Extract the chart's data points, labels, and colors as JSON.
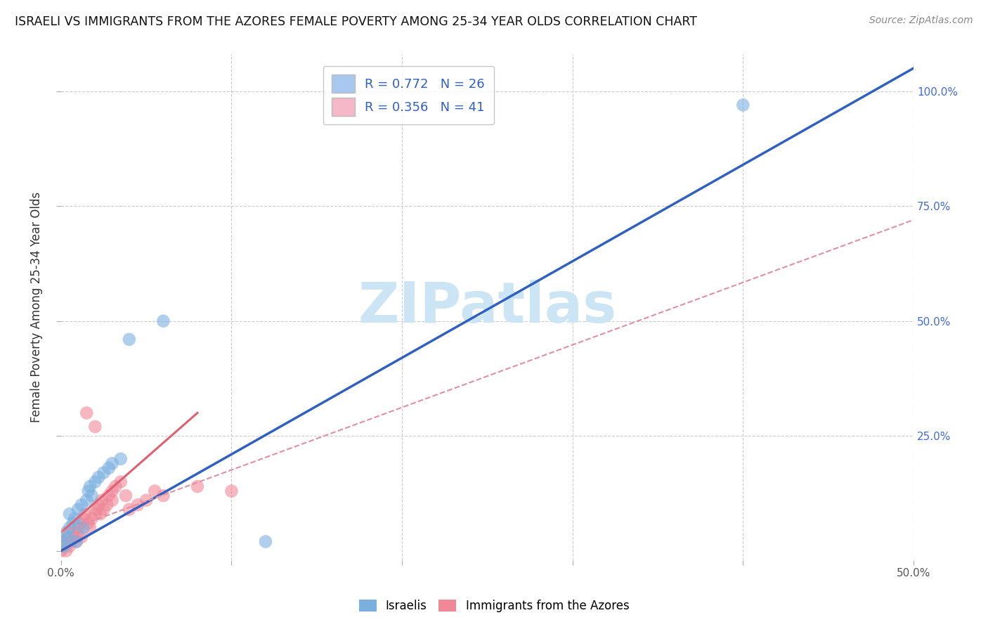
{
  "title": "ISRAELI VS IMMIGRANTS FROM THE AZORES FEMALE POVERTY AMONG 25-34 YEAR OLDS CORRELATION CHART",
  "source": "Source: ZipAtlas.com",
  "ylabel": "Female Poverty Among 25-34 Year Olds",
  "xlim": [
    0.0,
    0.5
  ],
  "ylim": [
    -0.02,
    1.08
  ],
  "legend_items": [
    {
      "label": "R = 0.772   N = 26",
      "color": "#a8c8f0"
    },
    {
      "label": "R = 0.356   N = 41",
      "color": "#f5b8c8"
    }
  ],
  "israelis_scatter": [
    [
      0.0,
      0.02
    ],
    [
      0.002,
      0.01
    ],
    [
      0.003,
      0.04
    ],
    [
      0.004,
      0.03
    ],
    [
      0.005,
      0.05
    ],
    [
      0.005,
      0.08
    ],
    [
      0.007,
      0.06
    ],
    [
      0.008,
      0.07
    ],
    [
      0.009,
      0.02
    ],
    [
      0.01,
      0.09
    ],
    [
      0.012,
      0.1
    ],
    [
      0.013,
      0.05
    ],
    [
      0.015,
      0.11
    ],
    [
      0.016,
      0.13
    ],
    [
      0.017,
      0.14
    ],
    [
      0.018,
      0.12
    ],
    [
      0.02,
      0.15
    ],
    [
      0.022,
      0.16
    ],
    [
      0.025,
      0.17
    ],
    [
      0.028,
      0.18
    ],
    [
      0.03,
      0.19
    ],
    [
      0.035,
      0.2
    ],
    [
      0.04,
      0.46
    ],
    [
      0.06,
      0.5
    ],
    [
      0.12,
      0.02
    ],
    [
      0.4,
      0.97
    ]
  ],
  "azores_scatter": [
    [
      0.0,
      0.0
    ],
    [
      0.001,
      0.01
    ],
    [
      0.002,
      0.02
    ],
    [
      0.003,
      0.0
    ],
    [
      0.004,
      0.03
    ],
    [
      0.005,
      0.01
    ],
    [
      0.006,
      0.02
    ],
    [
      0.007,
      0.04
    ],
    [
      0.008,
      0.03
    ],
    [
      0.009,
      0.02
    ],
    [
      0.01,
      0.05
    ],
    [
      0.01,
      0.04
    ],
    [
      0.011,
      0.06
    ],
    [
      0.012,
      0.03
    ],
    [
      0.013,
      0.07
    ],
    [
      0.014,
      0.08
    ],
    [
      0.015,
      0.3
    ],
    [
      0.016,
      0.06
    ],
    [
      0.017,
      0.05
    ],
    [
      0.018,
      0.07
    ],
    [
      0.02,
      0.08
    ],
    [
      0.02,
      0.27
    ],
    [
      0.021,
      0.09
    ],
    [
      0.022,
      0.1
    ],
    [
      0.023,
      0.08
    ],
    [
      0.024,
      0.11
    ],
    [
      0.025,
      0.09
    ],
    [
      0.027,
      0.1
    ],
    [
      0.028,
      0.12
    ],
    [
      0.03,
      0.13
    ],
    [
      0.03,
      0.11
    ],
    [
      0.032,
      0.14
    ],
    [
      0.035,
      0.15
    ],
    [
      0.038,
      0.12
    ],
    [
      0.04,
      0.09
    ],
    [
      0.045,
      0.1
    ],
    [
      0.05,
      0.11
    ],
    [
      0.055,
      0.13
    ],
    [
      0.06,
      0.12
    ],
    [
      0.08,
      0.14
    ],
    [
      0.1,
      0.13
    ]
  ],
  "israeli_color": "#7ab0e0",
  "azores_color": "#f08898",
  "israeli_line_color": "#3060c0",
  "azores_line_solid_color": "#e06070",
  "azores_line_dash_color": "#e090a0",
  "background_color": "#ffffff",
  "grid_color": "#cccccc",
  "watermark": "ZIPatlas",
  "watermark_color": "#cce5f5",
  "israeli_line": {
    "x0": 0.0,
    "y0": 0.0,
    "x1": 0.5,
    "y1": 1.05
  },
  "azores_solid_line": {
    "x0": 0.0,
    "y0": 0.04,
    "x1": 0.08,
    "y1": 0.3
  },
  "azores_dash_line": {
    "x0": 0.0,
    "y0": 0.04,
    "x1": 0.5,
    "y1": 0.72
  }
}
